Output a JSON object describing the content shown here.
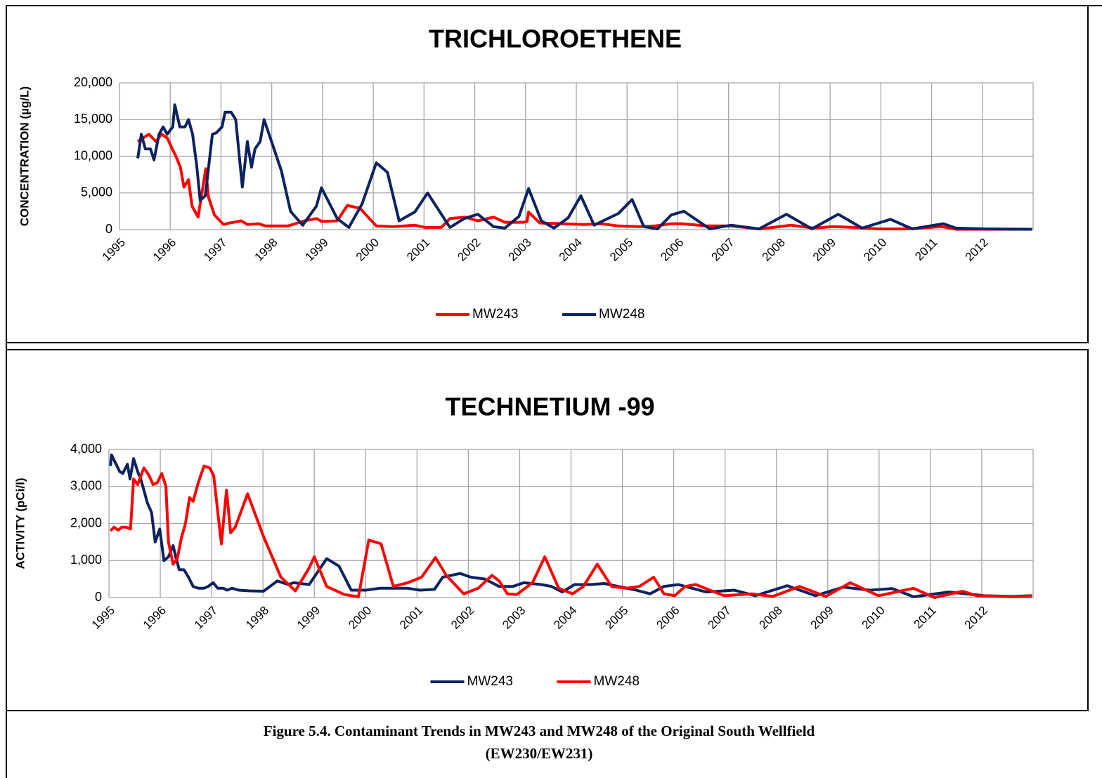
{
  "chart_data": [
    {
      "type": "line",
      "title": "TRICHLOROETHENE",
      "ylabel": "CONCENTRATION (µg/L)",
      "xlim": [
        1995,
        2013
      ],
      "xticks": [
        1995,
        1996,
        1997,
        1998,
        1999,
        2000,
        2001,
        2002,
        2003,
        2004,
        2005,
        2006,
        2007,
        2008,
        2009,
        2010,
        2011,
        2012
      ],
      "ylim": [
        0,
        20000
      ],
      "yticks": [
        0,
        {
          "value": 5000,
          "label": "5,000"
        },
        {
          "value": 10000,
          "label": "10,000"
        },
        {
          "value": 15000,
          "label": "15,000"
        },
        {
          "value": 20000,
          "label": "20,000"
        }
      ],
      "grid": true,
      "legend": "bottom",
      "series": [
        {
          "name": "MW243",
          "color": "#ff0000",
          "x": [
            1995.36,
            1995.58,
            1995.72,
            1995.83,
            1995.94,
            1996.04,
            1996.11,
            1996.2,
            1996.27,
            1996.36,
            1996.43,
            1996.55,
            1996.7,
            1996.75,
            1996.87,
            1997.05,
            1997.17,
            1997.4,
            1997.52,
            1997.74,
            1997.88,
            1998.32,
            1998.64,
            1998.88,
            1998.99,
            1999.29,
            1999.49,
            1999.74,
            2000.06,
            2000.4,
            2000.82,
            2001.02,
            2001.34,
            2001.51,
            2001.81,
            2002.06,
            2002.37,
            2002.59,
            2002.96,
            2003.03,
            2003.06,
            2003.28,
            2003.73,
            2004.14,
            2004.49,
            2004.83,
            2005.25,
            2005.55,
            2005.87,
            2006.08,
            2006.57,
            2007.05,
            2007.6,
            2007.88,
            2008.23,
            2008.68,
            2009.06,
            2009.47,
            2009.96,
            2010.51,
            2011.2,
            2011.48,
            2012.98
          ],
          "values": [
            12000,
            13000,
            12000,
            13000,
            12500,
            11000,
            10000,
            8500,
            5800,
            6800,
            3200,
            1700,
            8300,
            4500,
            2000,
            700,
            900,
            1200,
            700,
            800,
            500,
            500,
            1200,
            1500,
            1100,
            1200,
            3300,
            2900,
            500,
            400,
            600,
            300,
            300,
            1500,
            1700,
            1200,
            1700,
            1000,
            1000,
            1100,
            2400,
            900,
            800,
            700,
            800,
            500,
            400,
            500,
            800,
            800,
            500,
            500,
            100,
            300,
            600,
            200,
            400,
            300,
            100,
            100,
            400,
            50,
            50
          ]
        },
        {
          "name": "MW248",
          "color": "#0d2260",
          "x": [
            1995.36,
            1995.43,
            1995.51,
            1995.61,
            1995.68,
            1995.78,
            1995.86,
            1995.94,
            1996.05,
            1996.09,
            1996.19,
            1996.29,
            1996.36,
            1996.44,
            1996.52,
            1996.59,
            1996.69,
            1996.83,
            1996.91,
            1997.02,
            1997.08,
            1997.2,
            1997.29,
            1997.42,
            1997.52,
            1997.6,
            1997.67,
            1997.77,
            1997.85,
            1998.19,
            1998.37,
            1998.61,
            1998.88,
            1998.98,
            1999.29,
            1999.52,
            1999.78,
            2000.06,
            2000.28,
            2000.51,
            2000.82,
            2001.07,
            2001.51,
            2001.79,
            2002.06,
            2002.37,
            2002.59,
            2002.87,
            2003.06,
            2003.31,
            2003.56,
            2003.84,
            2004.09,
            2004.35,
            2004.83,
            2005.1,
            2005.33,
            2005.6,
            2005.87,
            2006.12,
            2006.63,
            2007.05,
            2007.6,
            2008.14,
            2008.64,
            2009.16,
            2009.63,
            2010.19,
            2010.62,
            2011.23,
            2011.48,
            2012.04,
            2012.98
          ],
          "values": [
            9700,
            13000,
            11000,
            11000,
            9500,
            13000,
            14000,
            13000,
            14000,
            17000,
            14000,
            14000,
            15000,
            13000,
            8800,
            4000,
            4600,
            13000,
            13200,
            14000,
            16000,
            16000,
            15000,
            5800,
            12000,
            8500,
            11000,
            12000,
            15000,
            8000,
            2500,
            600,
            3200,
            5700,
            1500,
            300,
            3500,
            9100,
            7800,
            1200,
            2400,
            5000,
            300,
            1500,
            2100,
            400,
            200,
            1800,
            5600,
            1200,
            200,
            1600,
            4600,
            600,
            2200,
            4100,
            400,
            100,
            2000,
            2500,
            100,
            600,
            100,
            2100,
            100,
            2100,
            200,
            1400,
            100,
            800,
            200,
            100,
            50
          ]
        }
      ]
    },
    {
      "type": "line",
      "title": "TECHNETIUM -99",
      "ylabel": "ACTIVITY (pCi/l)",
      "xlim": [
        1995,
        2013
      ],
      "xticks": [
        1995,
        1996,
        1997,
        1998,
        1999,
        2000,
        2001,
        2002,
        2003,
        2004,
        2005,
        2006,
        2007,
        2008,
        2009,
        2010,
        2011,
        2012
      ],
      "ylim": [
        0,
        4000
      ],
      "yticks": [
        0,
        {
          "value": 1000,
          "label": "1,000"
        },
        {
          "value": 2000,
          "label": "2,000"
        },
        {
          "value": 3000,
          "label": "3,000"
        },
        {
          "value": 4000,
          "label": "4,000"
        }
      ],
      "grid": true,
      "legend": "bottom",
      "series": [
        {
          "name": "MW243",
          "color": "#0d2260",
          "x": [
            1995.03,
            1995.05,
            1995.14,
            1995.21,
            1995.27,
            1995.36,
            1995.41,
            1995.48,
            1995.56,
            1995.62,
            1995.68,
            1995.75,
            1995.83,
            1995.9,
            1995.99,
            1996.07,
            1996.16,
            1996.25,
            1996.3,
            1996.37,
            1996.46,
            1996.55,
            1996.64,
            1996.74,
            1996.85,
            1996.93,
            1997.03,
            1997.12,
            1997.23,
            1997.3,
            1997.4,
            1997.53,
            1997.74,
            1998.01,
            1998.28,
            1998.49,
            1998.6,
            1998.9,
            1999.24,
            1999.48,
            1999.72,
            2000.0,
            2000.27,
            2000.82,
            2001.06,
            2001.34,
            2001.5,
            2001.84,
            2002.05,
            2002.32,
            2002.6,
            2002.87,
            2003.08,
            2003.42,
            2003.62,
            2003.83,
            2004.07,
            2004.38,
            2004.65,
            2004.92,
            2005.27,
            2005.54,
            2005.81,
            2006.09,
            2006.63,
            2007.18,
            2007.59,
            2008.21,
            2008.76,
            2009.3,
            2009.82,
            2010.26,
            2010.67,
            2011.36,
            2012.04,
            2012.59,
            2012.98
          ],
          "values": [
            3550,
            3850,
            3600,
            3400,
            3350,
            3600,
            3200,
            3750,
            3400,
            3200,
            2900,
            2550,
            2300,
            1500,
            1850,
            1000,
            1100,
            1400,
            1100,
            750,
            750,
            550,
            300,
            250,
            250,
            300,
            400,
            250,
            250,
            200,
            250,
            200,
            180,
            170,
            450,
            350,
            400,
            350,
            1050,
            850,
            200,
            200,
            250,
            250,
            200,
            220,
            550,
            650,
            550,
            500,
            300,
            300,
            400,
            350,
            300,
            150,
            350,
            350,
            380,
            300,
            200,
            100,
            300,
            350,
            150,
            200,
            50,
            320,
            50,
            280,
            200,
            240,
            20,
            150,
            50,
            30,
            50
          ]
        },
        {
          "name": "MW248",
          "color": "#ff0000",
          "x": [
            1995.03,
            1995.1,
            1995.18,
            1995.25,
            1995.34,
            1995.42,
            1995.48,
            1995.56,
            1995.68,
            1995.78,
            1995.86,
            1995.94,
            1996.03,
            1996.11,
            1996.16,
            1996.25,
            1996.33,
            1996.41,
            1996.49,
            1996.57,
            1996.64,
            1996.74,
            1996.85,
            1996.96,
            1997.04,
            1997.12,
            1997.19,
            1997.29,
            1997.37,
            1997.46,
            1997.7,
            1998.01,
            1998.35,
            1998.63,
            1998.9,
            1999.0,
            1999.24,
            1999.59,
            1999.86,
            2000.06,
            2000.3,
            2000.54,
            2000.82,
            2001.09,
            2001.36,
            2001.57,
            2001.91,
            2002.19,
            2002.46,
            2002.6,
            2002.76,
            2002.94,
            2003.25,
            2003.49,
            2003.76,
            2004.03,
            2004.24,
            2004.51,
            2004.79,
            2005.06,
            2005.33,
            2005.61,
            2005.81,
            2006.02,
            2006.22,
            2006.43,
            2006.98,
            2007.52,
            2007.93,
            2008.45,
            2008.96,
            2009.44,
            2009.99,
            2010.67,
            2011.08,
            2011.63,
            2011.9,
            2012.59,
            2012.98
          ],
          "values": [
            1800,
            1900,
            1820,
            1900,
            1900,
            1850,
            3200,
            3050,
            3500,
            3300,
            3050,
            3100,
            3350,
            3000,
            1500,
            900,
            1050,
            1600,
            2000,
            2700,
            2600,
            3100,
            3550,
            3500,
            3300,
            2300,
            1450,
            2900,
            1750,
            1900,
            2800,
            1650,
            550,
            180,
            800,
            1100,
            300,
            80,
            20,
            1550,
            1450,
            300,
            400,
            550,
            1080,
            600,
            100,
            250,
            600,
            450,
            100,
            80,
            400,
            1100,
            250,
            100,
            300,
            900,
            300,
            250,
            300,
            550,
            100,
            50,
            300,
            350,
            50,
            100,
            30,
            300,
            30,
            400,
            50,
            250,
            0,
            170,
            50,
            20,
            30
          ]
        }
      ]
    }
  ],
  "caption": [
    "Figure 5.4. Contaminant Trends in MW243 and MW248 of the Original South Wellfield",
    "(EW230/EW231)"
  ]
}
